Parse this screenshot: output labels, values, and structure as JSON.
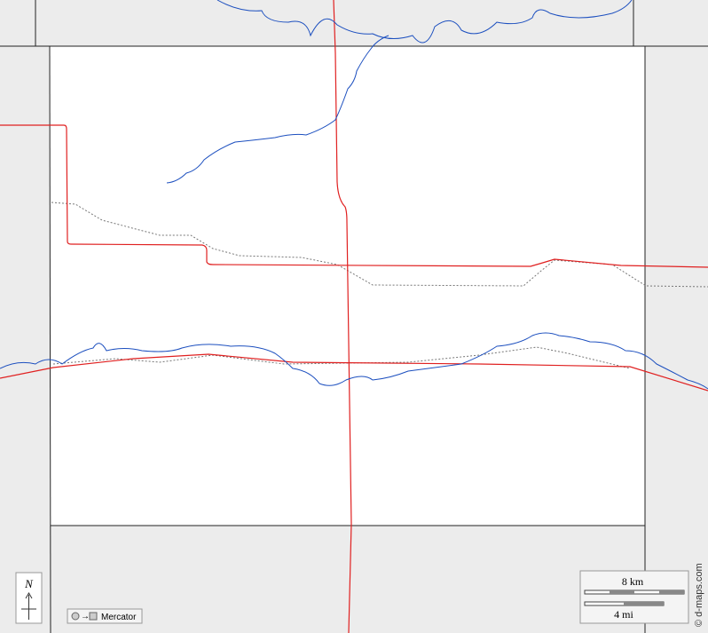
{
  "compass": {
    "label": "N"
  },
  "scale": {
    "km": "8 km",
    "mi": "4 mi"
  },
  "projection": "Mercator",
  "credit": "© d-maps.com"
}
